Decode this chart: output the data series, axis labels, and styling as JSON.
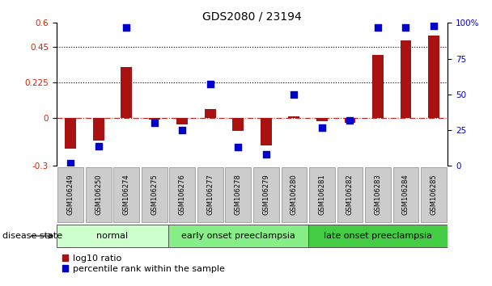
{
  "title": "GDS2080 / 23194",
  "samples": [
    "GSM106249",
    "GSM106250",
    "GSM106274",
    "GSM106275",
    "GSM106276",
    "GSM106277",
    "GSM106278",
    "GSM106279",
    "GSM106280",
    "GSM106281",
    "GSM106282",
    "GSM106283",
    "GSM106284",
    "GSM106285"
  ],
  "log10_ratio": [
    -0.19,
    -0.14,
    0.32,
    -0.01,
    -0.04,
    0.06,
    -0.08,
    -0.17,
    0.01,
    -0.02,
    -0.03,
    0.4,
    0.49,
    0.52
  ],
  "percentile_rank": [
    2,
    14,
    97,
    30,
    25,
    57,
    13,
    8,
    50,
    27,
    32,
    97,
    97,
    98
  ],
  "groups": [
    {
      "label": "normal",
      "start": 0,
      "end": 4,
      "color": "#ccffcc"
    },
    {
      "label": "early onset preeclampsia",
      "start": 4,
      "end": 9,
      "color": "#88ee88"
    },
    {
      "label": "late onset preeclampsia",
      "start": 9,
      "end": 14,
      "color": "#44cc44"
    }
  ],
  "bar_color": "#aa1111",
  "dot_color": "#0000cc",
  "left_ylim": [
    -0.3,
    0.6
  ],
  "right_ylim": [
    0,
    100
  ],
  "left_yticks": [
    -0.3,
    0,
    0.225,
    0.45,
    0.6
  ],
  "right_yticks": [
    0,
    25,
    50,
    75,
    100
  ],
  "hline_dotted": [
    0.225,
    0.45
  ],
  "legend_items": [
    "log10 ratio",
    "percentile rank within the sample"
  ],
  "background_color": "#ffffff",
  "sample_box_color": "#cccccc",
  "title_fontsize": 10,
  "tick_fontsize": 7.5,
  "label_fontsize": 8,
  "group_fontsize": 8
}
